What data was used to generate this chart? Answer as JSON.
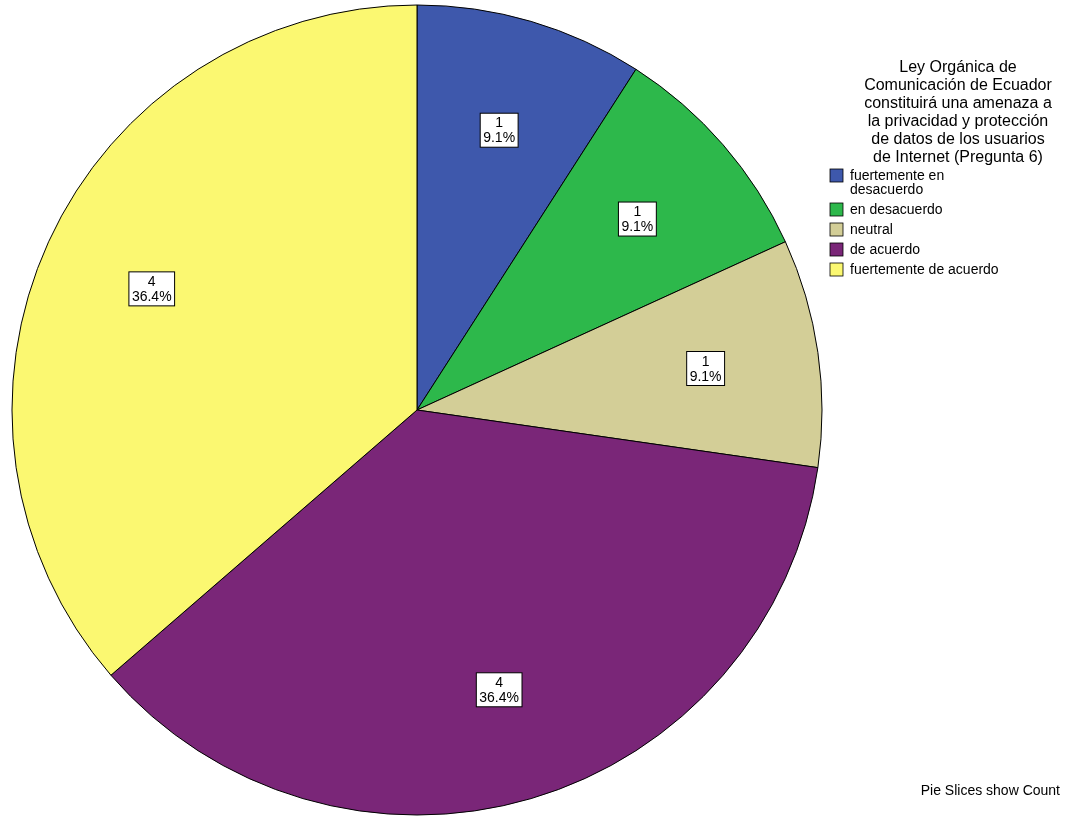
{
  "chart_data": {
    "type": "pie",
    "legend_title": "Ley Orgánica de Comunicación de Ecuador constituirá una amenaza a la privacidad y protección de datos de los usuarios de Internet (Pregunta 6)",
    "categories": [
      "fuertemente en desacuerdo",
      "en desacuerdo",
      "neutral",
      "de acuerdo",
      "fuertemente de acuerdo"
    ],
    "values": [
      1,
      1,
      1,
      4,
      4
    ],
    "colors": [
      "#3e58ac",
      "#2db84b",
      "#d3ce97",
      "#7a2678",
      "#fbf871"
    ],
    "value_labels": [
      "1\n9.1%",
      "1\n9.1%",
      "1\n9.1%",
      "4\n36.4%",
      "4\n36.4%"
    ],
    "legend": "right",
    "annotations": [
      "Pie Slices show Count"
    ]
  }
}
